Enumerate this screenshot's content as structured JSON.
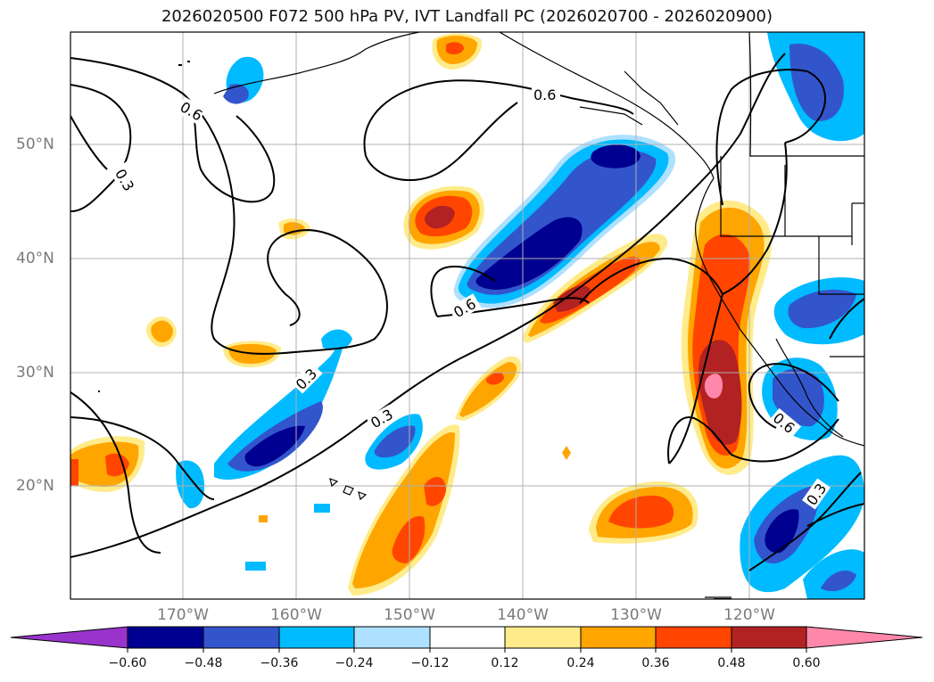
{
  "title": "2026020500 F072 500 hPa PV, IVT Landfall PC (2026020700 - 2026020900)",
  "lat_labels": [
    "50°N",
    "40°N",
    "30°N",
    "20°N"
  ],
  "lon_labels": [
    "170°W",
    "160°W",
    "150°W",
    "140°W",
    "130°W",
    "120°W"
  ],
  "contour_labels": [
    "0.6",
    "0.3",
    "0.6",
    "0.6",
    "0.3",
    "0.3",
    "0.6",
    "0.3"
  ],
  "colorbar": {
    "ticks": [
      "−0.60",
      "−0.48",
      "−0.36",
      "−0.24",
      "−0.12",
      "0.12",
      "0.24",
      "0.36",
      "0.48",
      "0.60"
    ],
    "colors": [
      "#9933cc",
      "#000090",
      "#3355cc",
      "#00bbff",
      "#aee0ff",
      "#ffffff",
      "#ffeb8a",
      "#ffa500",
      "#ff4500",
      "#b22222",
      "#ff88aa"
    ]
  },
  "colors": {
    "neg_strong": "#000090",
    "neg_mid": "#3355cc",
    "neg_weak": "#00bbff",
    "neg_faint": "#aee0ff",
    "pos_faint": "#ffeb8a",
    "pos_weak": "#ffa500",
    "pos_mid": "#ff4500",
    "pos_strong": "#b22222",
    "pos_max": "#ff88aa"
  }
}
